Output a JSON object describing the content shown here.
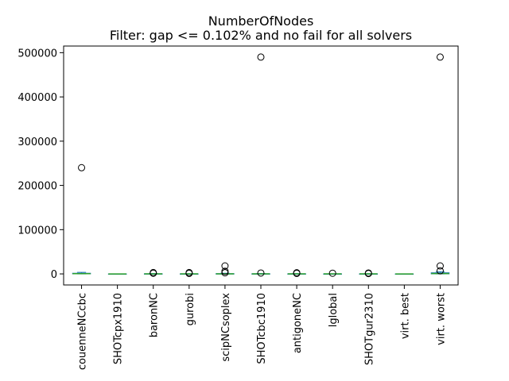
{
  "chart_data": {
    "type": "box",
    "title": "NumberOfNodes",
    "subtitle": "Filter: gap <= 0.102% and no fail for all solvers",
    "xlabel": "",
    "ylabel": "",
    "ylim": [
      -25000,
      515000
    ],
    "yticks": [
      0,
      100000,
      200000,
      300000,
      400000,
      500000
    ],
    "ytick_labels": [
      "0",
      "100000",
      "200000",
      "300000",
      "400000",
      "500000"
    ],
    "grid": false,
    "legend": "none",
    "colors": {
      "median": "#2ca02c",
      "box": "#1f77b4",
      "whisker": "#1f77b4",
      "outlier": "#000000"
    },
    "categories": [
      "couenneNCcbc",
      "SHOTcpx1910",
      "baronNC",
      "gurobi",
      "scipNCsoplex",
      "SHOTcbc1910",
      "antigoneNC",
      "lglobal",
      "SHOTgur2310",
      "virt. best",
      "virt. worst"
    ],
    "series": [
      {
        "q1": 100,
        "median": 500,
        "q3": 1500,
        "whisker_low": 0,
        "whisker_high": 3500,
        "outliers": [
          240000
        ]
      },
      {
        "q1": 0,
        "median": 0,
        "q3": 10,
        "whisker_low": 0,
        "whisker_high": 20,
        "outliers": []
      },
      {
        "q1": 0,
        "median": 50,
        "q3": 300,
        "whisker_low": 0,
        "whisker_high": 800,
        "outliers": [
          1500,
          3000
        ]
      },
      {
        "q1": 0,
        "median": 30,
        "q3": 150,
        "whisker_low": 0,
        "whisker_high": 400,
        "outliers": [
          1200,
          3000
        ]
      },
      {
        "q1": 10,
        "median": 100,
        "q3": 600,
        "whisker_low": 0,
        "whisker_high": 1500,
        "outliers": [
          2500,
          6000,
          18000
        ]
      },
      {
        "q1": 0,
        "median": 50,
        "q3": 300,
        "whisker_low": 0,
        "whisker_high": 800,
        "outliers": [
          2000,
          490000
        ]
      },
      {
        "q1": 0,
        "median": 20,
        "q3": 200,
        "whisker_low": 0,
        "whisker_high": 600,
        "outliers": [
          1200,
          2500
        ]
      },
      {
        "q1": 0,
        "median": 10,
        "q3": 80,
        "whisker_low": 0,
        "whisker_high": 200,
        "outliers": [
          1500
        ]
      },
      {
        "q1": 0,
        "median": 20,
        "q3": 150,
        "whisker_low": 0,
        "whisker_high": 400,
        "outliers": [
          800,
          2000
        ]
      },
      {
        "q1": 0,
        "median": 0,
        "q3": 10,
        "whisker_low": 0,
        "whisker_high": 30,
        "outliers": []
      },
      {
        "q1": 100,
        "median": 800,
        "q3": 2500,
        "whisker_low": 0,
        "whisker_high": 5000,
        "outliers": [
          7000,
          18000,
          490000
        ]
      }
    ]
  }
}
